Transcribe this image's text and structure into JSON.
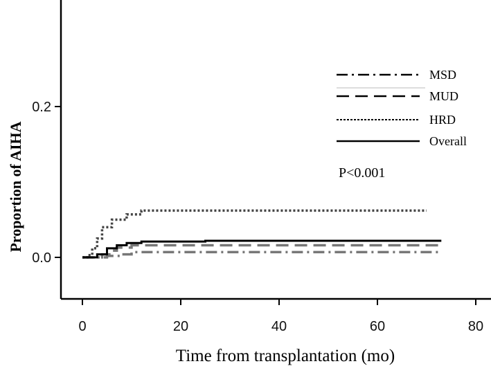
{
  "chart_data": {
    "type": "line",
    "title": "",
    "xlabel": "Time from transplantation (mo)",
    "ylabel": "Proportion of AIHA",
    "xlim": [
      -5,
      80
    ],
    "ylim": [
      -0.055,
      0.34
    ],
    "xticks": [
      0,
      20,
      40,
      60,
      80
    ],
    "yticks": [
      0.0,
      0.2
    ],
    "ytick_labels": [
      "0.0",
      "0.2"
    ],
    "xtick_labels": [
      "0",
      "20",
      "40",
      "60",
      "80"
    ],
    "grid": false,
    "legend_position": "right",
    "annotation": "P<0.001",
    "series": [
      {
        "name": "MSD",
        "style": "dashdot",
        "color": "#777777",
        "points": [
          [
            0,
            0
          ],
          [
            5,
            0
          ],
          [
            5,
            0.002
          ],
          [
            8,
            0.004
          ],
          [
            10,
            0.007
          ],
          [
            73,
            0.007
          ]
        ]
      },
      {
        "name": "MUD",
        "style": "dashed",
        "color": "#777777",
        "points": [
          [
            0,
            0
          ],
          [
            4,
            0.004
          ],
          [
            6,
            0.009
          ],
          [
            7,
            0.013
          ],
          [
            10,
            0.016
          ],
          [
            24,
            0.016
          ],
          [
            73,
            0.016
          ]
        ]
      },
      {
        "name": "HRD",
        "style": "dotted",
        "color": "#444444",
        "points": [
          [
            0,
            0
          ],
          [
            1,
            0.003
          ],
          [
            2,
            0.012
          ],
          [
            3,
            0.025
          ],
          [
            4,
            0.04
          ],
          [
            6,
            0.05
          ],
          [
            9,
            0.057
          ],
          [
            12,
            0.062
          ],
          [
            70,
            0.062
          ]
        ]
      },
      {
        "name": "Overall",
        "style": "solid",
        "color": "#000000",
        "points": [
          [
            0,
            0
          ],
          [
            3,
            0.004
          ],
          [
            5,
            0.012
          ],
          [
            7,
            0.016
          ],
          [
            9,
            0.019
          ],
          [
            12,
            0.021
          ],
          [
            25,
            0.022
          ],
          [
            73,
            0.022
          ]
        ]
      }
    ]
  }
}
